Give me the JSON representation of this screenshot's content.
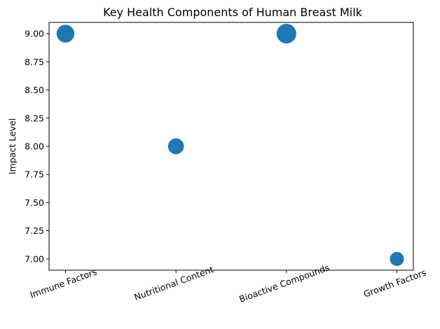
{
  "chart_data": {
    "type": "scatter",
    "title": "Key Health Components of Human Breast Milk",
    "xlabel": "",
    "ylabel": "Impact Level",
    "categories": [
      "Immune Factors",
      "Nutritional Content",
      "Bioactive Compounds",
      "Growth Factors"
    ],
    "values": [
      9,
      8,
      9,
      7
    ],
    "marker_size_rank": [
      3,
      2,
      4,
      1
    ],
    "ylim": [
      6.9,
      9.1
    ],
    "yticks": [
      "7.00",
      "7.25",
      "7.50",
      "7.75",
      "8.00",
      "8.25",
      "8.50",
      "8.75",
      "9.00"
    ],
    "xtick_rotation_deg": 20,
    "grid": false,
    "legend": "none",
    "color": "#1f77b4"
  }
}
